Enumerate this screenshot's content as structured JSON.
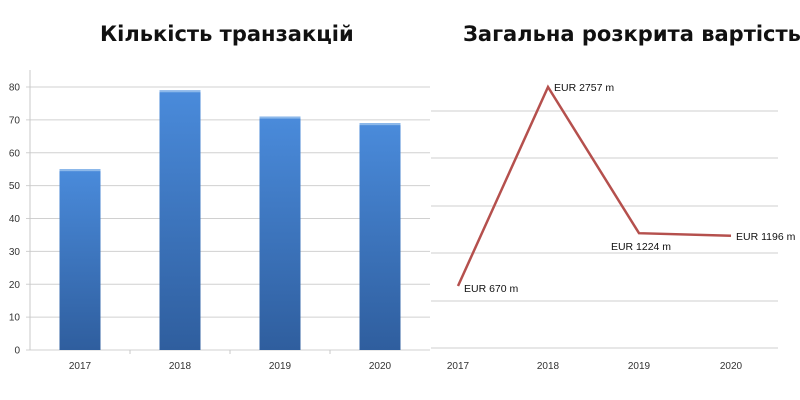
{
  "chart_data": [
    {
      "type": "bar",
      "title": "Кількість транзакцій",
      "categories": [
        "2017",
        "2018",
        "2019",
        "2020"
      ],
      "values": [
        55,
        79,
        71,
        69
      ],
      "xlabel": "",
      "ylabel": "",
      "ylim": [
        0,
        80
      ],
      "yticks": [
        0,
        10,
        20,
        30,
        40,
        50,
        60,
        70,
        80
      ],
      "grid": true,
      "legend": null,
      "color": "#3F7BC8"
    },
    {
      "type": "line",
      "title": "Загальна розкрита вартість",
      "categories": [
        "2017",
        "2018",
        "2019",
        "2020"
      ],
      "values": [
        670,
        2757,
        1224,
        1196
      ],
      "data_labels": [
        "EUR 670 m",
        "EUR 2757 m",
        "EUR 1224 m",
        "EUR 1196 m"
      ],
      "unit": "EUR m",
      "xlabel": "",
      "ylabel": "",
      "grid": true,
      "legend": null,
      "color": "#B5504D"
    }
  ]
}
